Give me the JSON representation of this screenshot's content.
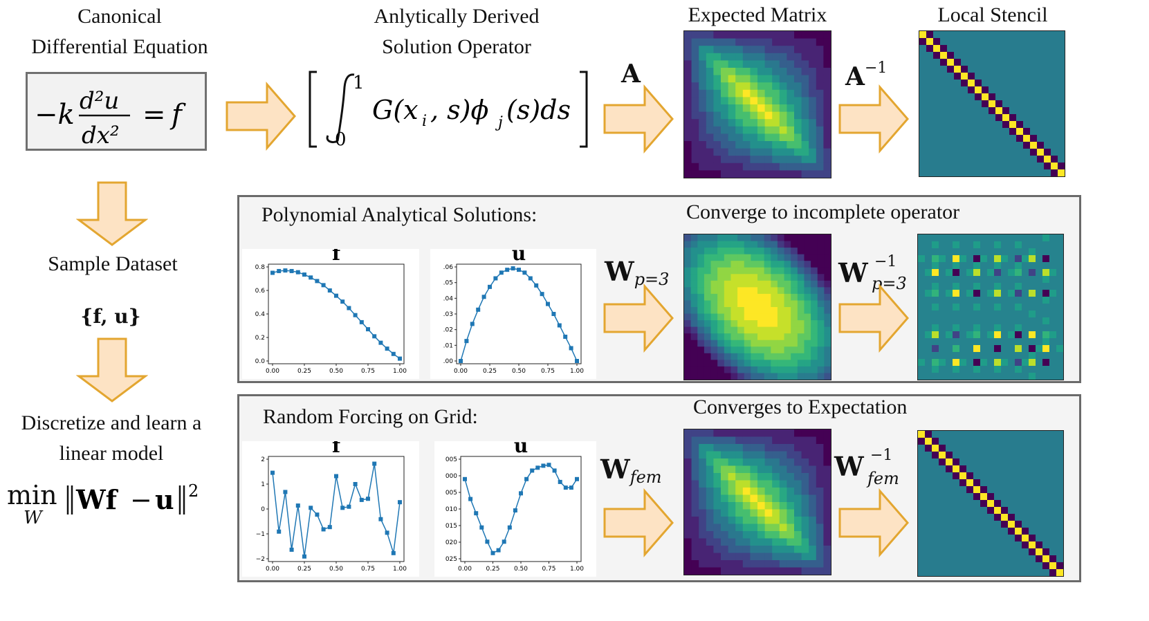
{
  "colors": {
    "arrow_fill": "#fde3c4",
    "arrow_stroke": "#e3a630",
    "panel_bg": "#f4f4f4",
    "line_blue": "#1f77b4"
  },
  "top": {
    "equation_title": [
      "Canonical",
      "Differential Equation"
    ],
    "operator_title": [
      "Anlytically Derived",
      "Solution Operator"
    ],
    "expected_title": "Expected Matrix",
    "stencil_title": "Local Stencil",
    "A_label": "A",
    "Ainv_label": "A",
    "Ainv_sup": "−1"
  },
  "left": {
    "sample_label": "Sample Dataset",
    "dataset_set": "{f, u}",
    "discretize_label": [
      "Discretize and learn a",
      "linear model"
    ],
    "min_label": "min",
    "min_sub": "W"
  },
  "panel1": {
    "title": "Polynomial Analytical Solutions:",
    "result_title": "Converge to incomplete operator",
    "f_title": "f",
    "u_title": "u",
    "W_label": "W",
    "W_sub": "p=3",
    "Winv_label": "W",
    "Winv_sup": "−1",
    "Winv_sub": "p=3",
    "f_yticks": [
      "0.8",
      "0.6",
      "0.4",
      "0.2",
      "0.0"
    ],
    "u_yticks": [
      ".06",
      ".05",
      ".04",
      ".03",
      ".02",
      ".01",
      ".00"
    ],
    "xticks": [
      "0.00",
      "0.25",
      "0.50",
      "0.75",
      "1.00"
    ]
  },
  "panel2": {
    "title": "Random Forcing on Grid:",
    "result_title": "Converges to Expectation",
    "f_title": "f",
    "u_title": "u",
    "W_label": "W",
    "W_sub": "fem",
    "Winv_label": "W",
    "Winv_sup": "−1",
    "Winv_sub": "fem",
    "f_yticks": [
      "2",
      "1",
      "0",
      "−1",
      "−2"
    ],
    "u_yticks": [
      "005",
      "000",
      "005",
      "010",
      "015",
      "020",
      "025"
    ],
    "xticks": [
      "0.00",
      "0.25",
      "0.50",
      "0.75",
      "1.00"
    ]
  },
  "chart_data": [
    {
      "type": "line",
      "title": "f",
      "x": [
        0,
        0.05,
        0.1,
        0.15,
        0.2,
        0.25,
        0.3,
        0.35,
        0.4,
        0.45,
        0.5,
        0.55,
        0.6,
        0.65,
        0.7,
        0.75,
        0.8,
        0.85,
        0.9,
        0.95,
        1.0
      ],
      "values": [
        0.75,
        0.765,
        0.77,
        0.765,
        0.755,
        0.735,
        0.71,
        0.68,
        0.645,
        0.6,
        0.555,
        0.505,
        0.45,
        0.39,
        0.33,
        0.27,
        0.21,
        0.155,
        0.105,
        0.06,
        0.02
      ],
      "ylim": [
        0,
        0.8
      ],
      "xlim": [
        0,
        1
      ]
    },
    {
      "type": "line",
      "title": "u",
      "x": [
        0,
        0.05,
        0.1,
        0.15,
        0.2,
        0.25,
        0.3,
        0.35,
        0.4,
        0.45,
        0.5,
        0.55,
        0.6,
        0.65,
        0.7,
        0.75,
        0.8,
        0.85,
        0.9,
        0.95,
        1.0
      ],
      "values": [
        0.0,
        0.014,
        0.026,
        0.036,
        0.045,
        0.052,
        0.058,
        0.062,
        0.064,
        0.065,
        0.064,
        0.062,
        0.058,
        0.053,
        0.047,
        0.04,
        0.033,
        0.025,
        0.017,
        0.009,
        0.0
      ],
      "ylim": [
        0,
        0.066
      ],
      "xlim": [
        0,
        1
      ]
    },
    {
      "type": "line",
      "title": "f",
      "x": [
        0,
        0.05,
        0.1,
        0.15,
        0.2,
        0.25,
        0.3,
        0.35,
        0.4,
        0.45,
        0.5,
        0.55,
        0.6,
        0.65,
        0.7,
        0.75,
        0.8,
        0.85,
        0.9,
        0.95,
        1.0
      ],
      "values": [
        1.5,
        -1.1,
        0.65,
        -1.9,
        0.05,
        -2.2,
        -0.05,
        -0.35,
        -1.0,
        -0.9,
        1.35,
        -0.05,
        0.0,
        1.0,
        0.3,
        0.35,
        1.9,
        -0.55,
        -1.15,
        -2.05,
        0.2
      ],
      "ylim": [
        -2.3,
        2.1
      ],
      "xlim": [
        0,
        1
      ]
    },
    {
      "type": "line",
      "title": "u",
      "x": [
        0,
        0.05,
        0.1,
        0.15,
        0.2,
        0.25,
        0.3,
        0.35,
        0.4,
        0.45,
        0.5,
        0.55,
        0.6,
        0.65,
        0.7,
        0.75,
        0.8,
        0.85,
        0.9,
        0.95,
        1.0
      ],
      "values": [
        0.0,
        -0.007,
        -0.012,
        -0.017,
        -0.022,
        -0.026,
        -0.025,
        -0.022,
        -0.017,
        -0.011,
        -0.005,
        0.0,
        0.003,
        0.004,
        0.0047,
        0.005,
        0.003,
        -0.001,
        -0.003,
        -0.003,
        0.0
      ],
      "ylim": [
        -0.028,
        0.007
      ],
      "xlim": [
        0,
        1
      ]
    }
  ]
}
